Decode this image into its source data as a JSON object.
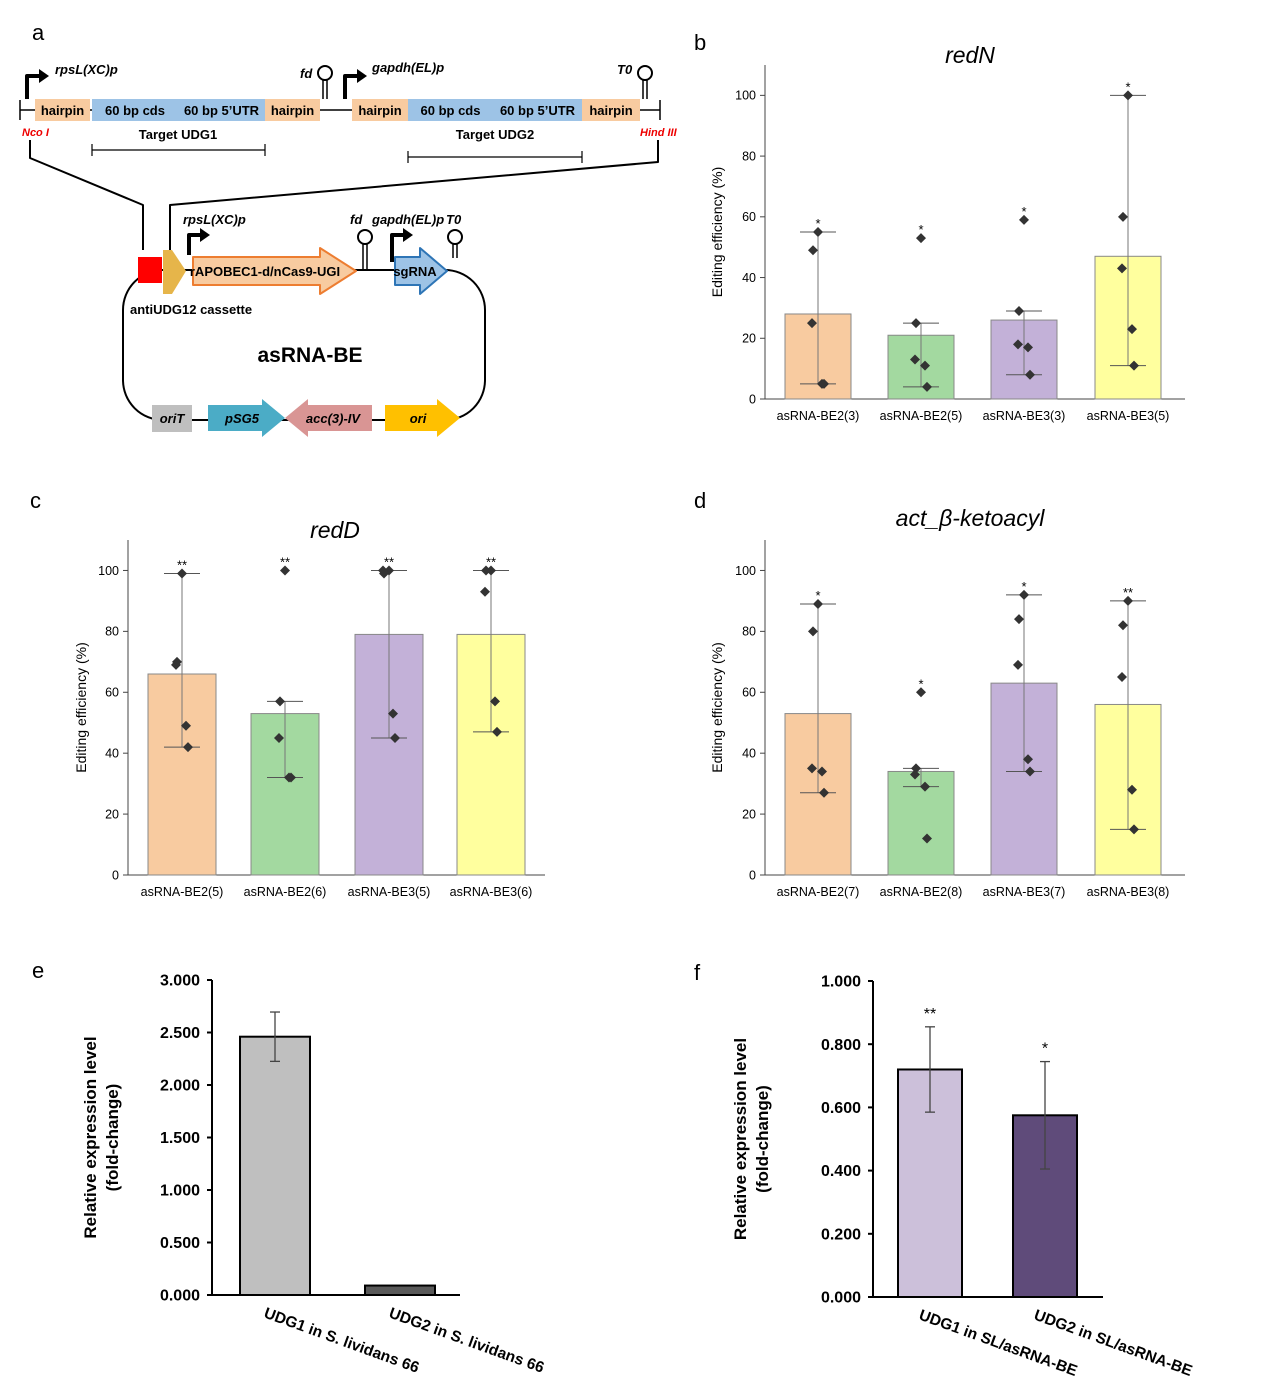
{
  "diagram": {
    "label": "a",
    "top": {
      "promoter_1": "rpsL(XC)p",
      "terminator_1": "fd",
      "promoter_2": "gapdh(EL)p",
      "terminator_2": "T0",
      "parts": [
        "hairpin",
        "60 bp cds",
        "60 bp 5’UTR",
        "hairpin",
        "hairpin",
        "60 bp cds",
        "60 bp 5’UTR",
        "hairpin"
      ],
      "site_left": "Nco I",
      "site_right": "Hind III",
      "target_1": "Target UDG1",
      "target_2": "Target UDG2"
    },
    "plasmid": {
      "name": "asRNA-BE",
      "cassette": "antiUDG12 cassette",
      "promoter_1": "rpsL(XC)p",
      "terminator_1": "fd",
      "promoter_2": "gapdh(EL)p",
      "terminator_2": "T0",
      "genes": [
        "rAPOBEC1-d/nCas9-UGI",
        "sgRNA"
      ],
      "backbone": [
        "oriT",
        "pSG5",
        "acc(3)-IV",
        "ori"
      ]
    }
  },
  "chart_data": [
    {
      "label": "b",
      "type": "bar",
      "title": "redN",
      "ylabel": "Editing efficiency (%)",
      "categories": [
        "asRNA-BE2(3)",
        "asRNA-BE2(5)",
        "asRNA-BE3(3)",
        "asRNA-BE3(5)"
      ],
      "values": [
        28,
        21,
        26,
        47
      ],
      "colors": [
        "#f8cba0",
        "#a3d9a0",
        "#c3b1d8",
        "#ffff9e"
      ],
      "whisker_low": [
        5,
        4,
        8,
        11
      ],
      "whisker_high": [
        55,
        25,
        29,
        100
      ],
      "points": [
        [
          55,
          49,
          25,
          5,
          5
        ],
        [
          53,
          25,
          13,
          11,
          4
        ],
        [
          59,
          29,
          18,
          17,
          8
        ],
        [
          100,
          60,
          43,
          23,
          11
        ]
      ],
      "annotations": [
        "*",
        "*",
        "*",
        "*"
      ],
      "ylim": [
        0,
        110
      ],
      "yticks": [
        0,
        20,
        40,
        60,
        80,
        100
      ]
    },
    {
      "label": "c",
      "type": "bar",
      "title": "redD",
      "ylabel": "Editing efficiency (%)",
      "categories": [
        "asRNA-BE2(5)",
        "asRNA-BE2(6)",
        "asRNA-BE3(5)",
        "asRNA-BE3(6)"
      ],
      "values": [
        66,
        53,
        79,
        79
      ],
      "colors": [
        "#f8cba0",
        "#a3d9a0",
        "#c3b1d8",
        "#ffff9e"
      ],
      "whisker_low": [
        42,
        32,
        45,
        47
      ],
      "whisker_high": [
        99,
        57,
        100,
        100
      ],
      "points": [
        [
          99,
          70,
          69,
          49,
          42
        ],
        [
          100,
          57,
          45,
          32,
          32
        ],
        [
          100,
          99,
          100,
          53,
          45
        ],
        [
          100,
          100,
          93,
          57,
          47
        ]
      ],
      "annotations": [
        "**",
        "**",
        "**",
        "**"
      ],
      "ylim": [
        0,
        110
      ],
      "yticks": [
        0,
        20,
        40,
        60,
        80,
        100
      ]
    },
    {
      "label": "d",
      "type": "bar",
      "title": "act_β-ketoacyl",
      "ylabel": "Editing efficiency (%)",
      "categories": [
        "asRNA-BE2(7)",
        "asRNA-BE2(8)",
        "asRNA-BE3(7)",
        "asRNA-BE3(8)"
      ],
      "values": [
        53,
        34,
        63,
        56
      ],
      "colors": [
        "#f8cba0",
        "#a3d9a0",
        "#c3b1d8",
        "#ffff9e"
      ],
      "whisker_low": [
        27,
        29,
        34,
        15
      ],
      "whisker_high": [
        89,
        35,
        92,
        90
      ],
      "points": [
        [
          89,
          80,
          35,
          34,
          27
        ],
        [
          60,
          35,
          33,
          29,
          12
        ],
        [
          92,
          84,
          69,
          38,
          34
        ],
        [
          90,
          82,
          65,
          28,
          15
        ]
      ],
      "annotations": [
        "*",
        "*",
        "*",
        "**"
      ],
      "ylim": [
        0,
        110
      ],
      "yticks": [
        0,
        20,
        40,
        60,
        80,
        100
      ]
    },
    {
      "label": "e",
      "type": "bar",
      "ylabel": [
        "Relative expression level",
        "(fold-change)"
      ],
      "categories": [
        "UDG1 in S. lividans 66",
        "UDG2 in S. lividans 66"
      ],
      "values": [
        2.46,
        0.09
      ],
      "errors": [
        0.235,
        null
      ],
      "colors": [
        "#bfbfbf",
        "#595959"
      ],
      "ylim": [
        0,
        3
      ],
      "yticks": [
        {
          "value": 0,
          "label": "0.000"
        },
        {
          "value": 0.5,
          "label": "0.500"
        },
        {
          "value": 1,
          "label": "1.000"
        },
        {
          "value": 1.5,
          "label": "1.500"
        },
        {
          "value": 2,
          "label": "2.000"
        },
        {
          "value": 2.5,
          "label": "2.500"
        },
        {
          "value": 3,
          "label": "3.000"
        }
      ]
    },
    {
      "label": "f",
      "type": "bar",
      "ylabel": [
        "Relative expression level",
        "(fold-change)"
      ],
      "categories": [
        "UDG1 in SL/asRNA-BE",
        "UDG2 in SL/asRNA-BE"
      ],
      "values": [
        0.72,
        0.575
      ],
      "errors": [
        0.135,
        0.17
      ],
      "annotations": [
        "**",
        "*"
      ],
      "colors": [
        "#ccc0da",
        "#5f4b7a"
      ],
      "ylim": [
        0,
        1
      ],
      "yticks": [
        {
          "value": 0,
          "label": "0.000"
        },
        {
          "value": 0.2,
          "label": "0.200"
        },
        {
          "value": 0.4,
          "label": "0.400"
        },
        {
          "value": 0.6,
          "label": "0.600"
        },
        {
          "value": 0.8,
          "label": "0.800"
        },
        {
          "value": 1,
          "label": "1.000"
        }
      ]
    }
  ]
}
